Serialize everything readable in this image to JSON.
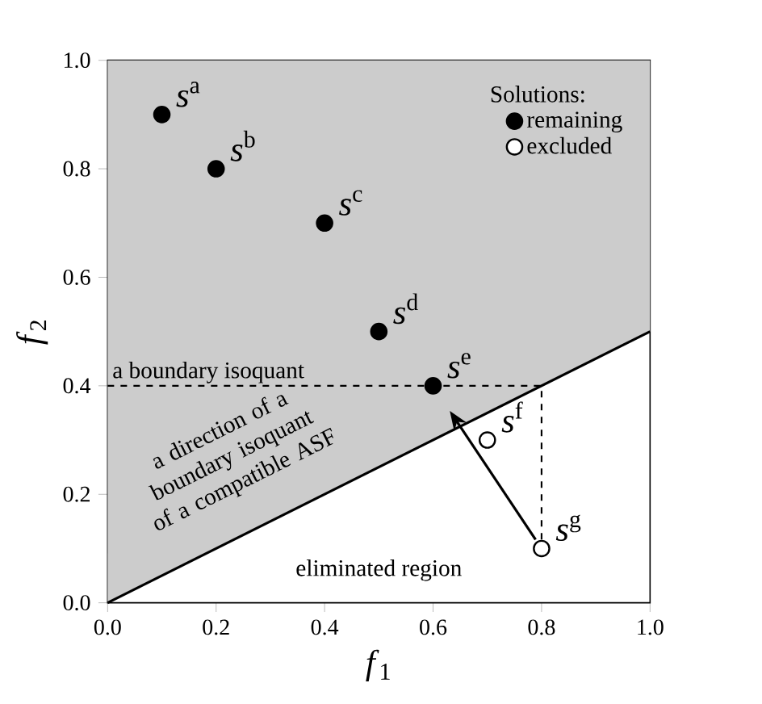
{
  "chart_data": {
    "type": "scatter",
    "xlabel": "*f*$_{1}$",
    "ylabel": "*f*$_{2}$",
    "xlim": [
      0,
      1
    ],
    "ylim": [
      0,
      1
    ],
    "xticks": [
      {
        "value": 0,
        "label": "0.0"
      },
      {
        "value": 0.2,
        "label": "0.2"
      },
      {
        "value": 0.4,
        "label": "0.4"
      },
      {
        "value": 0.6,
        "label": "0.6"
      },
      {
        "value": 0.8,
        "label": "0.8"
      },
      {
        "value": 1,
        "label": "1.0"
      }
    ],
    "yticks": [
      {
        "value": 0,
        "label": "0.0"
      },
      {
        "value": 0.2,
        "label": "0.2"
      },
      {
        "value": 0.4,
        "label": "0.4"
      },
      {
        "value": 0.6,
        "label": "0.6"
      },
      {
        "value": 0.8,
        "label": "0.8"
      },
      {
        "value": 1,
        "label": "1.0"
      }
    ],
    "legend": "top right",
    "legend_title": "Solutions:",
    "series": [
      {
        "type": "line",
        "color": "#000000",
        "x": [
          0,
          1
        ],
        "values": [
          0,
          0.5
        ],
        "line_style": "solid",
        "lower": [
          0,
          0.5
        ],
        "upper": [
          1,
          1
        ]
      },
      {
        "type": "line",
        "color": "#000000",
        "x": [
          0,
          0.8,
          0.8
        ],
        "values": [
          0.4,
          0.4,
          0.1
        ],
        "line_style": "dashed"
      },
      {
        "name": "remaining",
        "color": "#000000",
        "x": [
          0.1,
          0.2,
          0.4,
          0.5,
          0.6
        ],
        "values": [
          0.9,
          0.8,
          0.7,
          0.5,
          0.4
        ]
      },
      {
        "name": "excluded",
        "color": "#ffffff",
        "x": [
          0.7,
          0.8
        ],
        "values": [
          0.3,
          0.1
        ]
      }
    ],
    "annotations": [
      {
        "text": "*s*$^{a}$",
        "x": 0.1,
        "y": 0.9
      },
      {
        "text": "*s*$^{b}$",
        "x": 0.2,
        "y": 0.8
      },
      {
        "text": "*s*$^{c}$",
        "x": 0.4,
        "y": 0.7
      },
      {
        "text": "*s*$^{d}$",
        "x": 0.5,
        "y": 0.5
      },
      {
        "text": "*s*$^{e}$",
        "x": 0.6,
        "y": 0.4
      },
      {
        "text": "*s*$^{f}$",
        "x": 0.7,
        "y": 0.3
      },
      {
        "text": "*s*$^{g}$",
        "x": 0.8,
        "y": 0.1
      },
      {
        "text": "a boundary isoquant",
        "x": 0,
        "y": 0.4
      },
      "a direction of a boundary isoquant of a compatible ASF",
      "eliminated region"
    ]
  }
}
